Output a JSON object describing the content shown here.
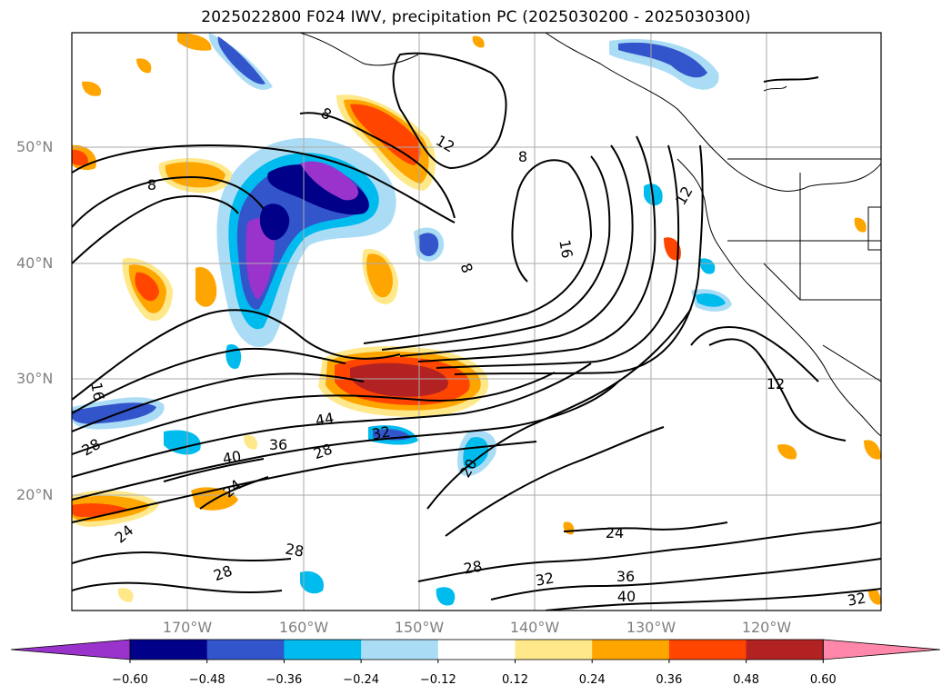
{
  "title": "2025022800 F024 IWV, precipitation PC (2025030200 - 2025030300)",
  "lat_labels": [
    "50°N",
    "40°N",
    "30°N",
    "20°N"
  ],
  "lon_labels": [
    "170°W",
    "160°W",
    "150°W",
    "140°W",
    "130°W",
    "120°W"
  ],
  "colorbar": {
    "ticks": [
      "−0.60",
      "−0.48",
      "−0.36",
      "−0.24",
      "−0.12",
      "0.12",
      "0.24",
      "0.36",
      "0.48",
      "0.60"
    ],
    "colors": [
      "#9933cc",
      "#000088",
      "#3355cc",
      "#00bbee",
      "#aaddf5",
      "#ffffff",
      "#ffe88a",
      "#ffa500",
      "#ff4500",
      "#b22222",
      "#ff88aa"
    ]
  },
  "contour_labels": [
    "8",
    "8",
    "8",
    "8",
    "12",
    "12",
    "12",
    "16",
    "16",
    "20",
    "24",
    "24",
    "24",
    "28",
    "28",
    "28",
    "28",
    "28",
    "32",
    "32",
    "32",
    "36",
    "36",
    "40",
    "40",
    "44"
  ]
}
